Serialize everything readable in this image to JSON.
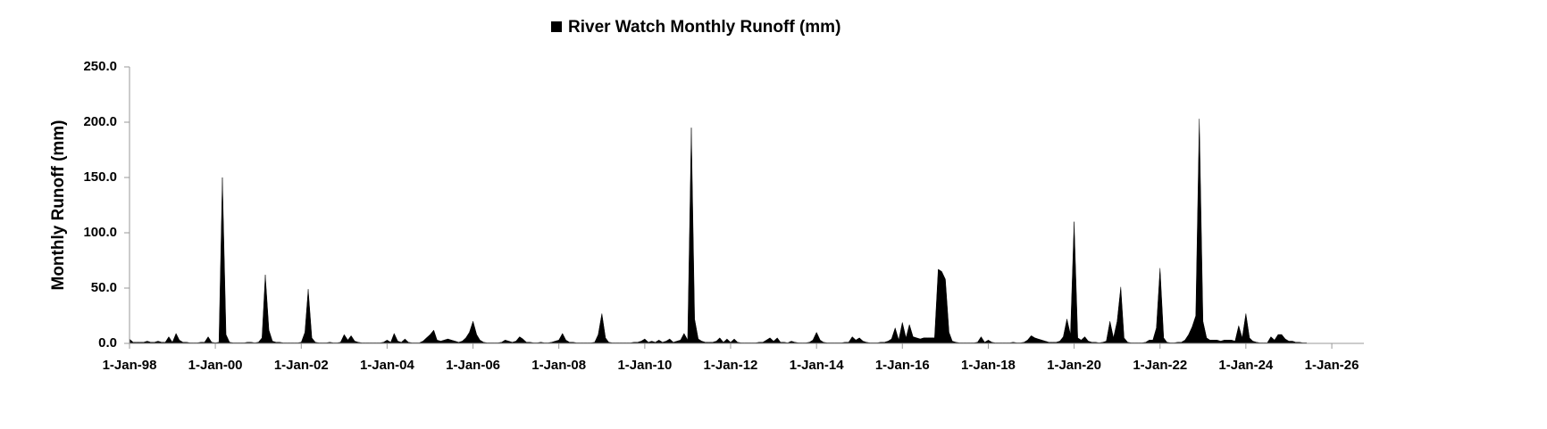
{
  "chart_data": {
    "type": "area",
    "y_label": "Monthly Runoff (mm)",
    "legend": "top",
    "x": [
      "1998-01-01",
      "1998-02-01",
      "1998-03-01",
      "1998-04-01",
      "1998-05-01",
      "1998-06-01",
      "1998-07-01",
      "1998-08-01",
      "1998-09-01",
      "1998-10-01",
      "1998-11-01",
      "1998-12-01",
      "1999-01-01",
      "1999-02-01",
      "1999-03-01",
      "1999-04-01",
      "1999-05-01",
      "1999-06-01",
      "1999-07-01",
      "1999-08-01",
      "1999-09-01",
      "1999-10-01",
      "1999-11-01",
      "1999-12-01",
      "2000-01-01",
      "2000-02-01",
      "2000-03-01",
      "2000-04-01",
      "2000-05-01",
      "2000-06-01",
      "2000-07-01",
      "2000-08-01",
      "2000-09-01",
      "2000-10-01",
      "2000-11-01",
      "2000-12-01",
      "2001-01-01",
      "2001-02-01",
      "2001-03-01",
      "2001-04-01",
      "2001-05-01",
      "2001-06-01",
      "2001-07-01",
      "2001-08-01",
      "2001-09-01",
      "2001-10-01",
      "2001-11-01",
      "2001-12-01",
      "2002-01-01",
      "2002-02-01",
      "2002-03-01",
      "2002-04-01",
      "2002-05-01",
      "2002-06-01",
      "2002-07-01",
      "2002-08-01",
      "2002-09-01",
      "2002-10-01",
      "2002-11-01",
      "2002-12-01",
      "2003-01-01",
      "2003-02-01",
      "2003-03-01",
      "2003-04-01",
      "2003-05-01",
      "2003-06-01",
      "2003-07-01",
      "2003-08-01",
      "2003-09-01",
      "2003-10-01",
      "2003-11-01",
      "2003-12-01",
      "2004-01-01",
      "2004-02-01",
      "2004-03-01",
      "2004-04-01",
      "2004-05-01",
      "2004-06-01",
      "2004-07-01",
      "2004-08-01",
      "2004-09-01",
      "2004-10-01",
      "2004-11-01",
      "2004-12-01",
      "2005-01-01",
      "2005-02-01",
      "2005-03-01",
      "2005-04-01",
      "2005-05-01",
      "2005-06-01",
      "2005-07-01",
      "2005-08-01",
      "2005-09-01",
      "2005-10-01",
      "2005-11-01",
      "2005-12-01",
      "2006-01-01",
      "2006-02-01",
      "2006-03-01",
      "2006-04-01",
      "2006-05-01",
      "2006-06-01",
      "2006-07-01",
      "2006-08-01",
      "2006-09-01",
      "2006-10-01",
      "2006-11-01",
      "2006-12-01",
      "2007-01-01",
      "2007-02-01",
      "2007-03-01",
      "2007-04-01",
      "2007-05-01",
      "2007-06-01",
      "2007-07-01",
      "2007-08-01",
      "2007-09-01",
      "2007-10-01",
      "2007-11-01",
      "2007-12-01",
      "2008-01-01",
      "2008-02-01",
      "2008-03-01",
      "2008-04-01",
      "2008-05-01",
      "2008-06-01",
      "2008-07-01",
      "2008-08-01",
      "2008-09-01",
      "2008-10-01",
      "2008-11-01",
      "2008-12-01",
      "2009-01-01",
      "2009-02-01",
      "2009-03-01",
      "2009-04-01",
      "2009-05-01",
      "2009-06-01",
      "2009-07-01",
      "2009-08-01",
      "2009-09-01",
      "2009-10-01",
      "2009-11-01",
      "2009-12-01",
      "2010-01-01",
      "2010-02-01",
      "2010-03-01",
      "2010-04-01",
      "2010-05-01",
      "2010-06-01",
      "2010-07-01",
      "2010-08-01",
      "2010-09-01",
      "2010-10-01",
      "2010-11-01",
      "2010-12-01",
      "2011-01-01",
      "2011-02-01",
      "2011-03-01",
      "2011-04-01",
      "2011-05-01",
      "2011-06-01",
      "2011-07-01",
      "2011-08-01",
      "2011-09-01",
      "2011-10-01",
      "2011-11-01",
      "2011-12-01",
      "2012-01-01",
      "2012-02-01",
      "2012-03-01",
      "2012-04-01",
      "2012-05-01",
      "2012-06-01",
      "2012-07-01",
      "2012-08-01",
      "2012-09-01",
      "2012-10-01",
      "2012-11-01",
      "2012-12-01",
      "2013-01-01",
      "2013-02-01",
      "2013-03-01",
      "2013-04-01",
      "2013-05-01",
      "2013-06-01",
      "2013-07-01",
      "2013-08-01",
      "2013-09-01",
      "2013-10-01",
      "2013-11-01",
      "2013-12-01",
      "2014-01-01",
      "2014-02-01",
      "2014-03-01",
      "2014-04-01",
      "2014-05-01",
      "2014-06-01",
      "2014-07-01",
      "2014-08-01",
      "2014-09-01",
      "2014-10-01",
      "2014-11-01",
      "2014-12-01",
      "2015-01-01",
      "2015-02-01",
      "2015-03-01",
      "2015-04-01",
      "2015-05-01",
      "2015-06-01",
      "2015-07-01",
      "2015-08-01",
      "2015-09-01",
      "2015-10-01",
      "2015-11-01",
      "2015-12-01",
      "2016-01-01",
      "2016-02-01",
      "2016-03-01",
      "2016-04-01",
      "2016-05-01",
      "2016-06-01",
      "2016-07-01",
      "2016-08-01",
      "2016-09-01",
      "2016-10-01",
      "2016-11-01",
      "2016-12-01",
      "2017-01-01",
      "2017-02-01",
      "2017-03-01",
      "2017-04-01",
      "2017-05-01",
      "2017-06-01",
      "2017-07-01",
      "2017-08-01",
      "2017-09-01",
      "2017-10-01",
      "2017-11-01",
      "2017-12-01",
      "2018-01-01",
      "2018-02-01",
      "2018-03-01",
      "2018-04-01",
      "2018-05-01",
      "2018-06-01",
      "2018-07-01",
      "2018-08-01",
      "2018-09-01",
      "2018-10-01",
      "2018-11-01",
      "2018-12-01",
      "2019-01-01",
      "2019-02-01",
      "2019-03-01",
      "2019-04-01",
      "2019-05-01",
      "2019-06-01",
      "2019-07-01",
      "2019-08-01",
      "2019-09-01",
      "2019-10-01",
      "2019-11-01",
      "2019-12-01",
      "2020-01-01",
      "2020-02-01",
      "2020-03-01",
      "2020-04-01",
      "2020-05-01",
      "2020-06-01",
      "2020-07-01",
      "2020-08-01",
      "2020-09-01",
      "2020-10-01",
      "2020-11-01",
      "2020-12-01",
      "2021-01-01",
      "2021-02-01",
      "2021-03-01",
      "2021-04-01",
      "2021-05-01",
      "2021-06-01",
      "2021-07-01",
      "2021-08-01",
      "2021-09-01",
      "2021-10-01",
      "2021-11-01",
      "2021-12-01",
      "2022-01-01",
      "2022-02-01",
      "2022-03-01",
      "2022-04-01",
      "2022-05-01",
      "2022-06-01",
      "2022-07-01",
      "2022-08-01",
      "2022-09-01",
      "2022-10-01",
      "2022-11-01",
      "2022-12-01",
      "2023-01-01",
      "2023-02-01",
      "2023-03-01",
      "2023-04-01",
      "2023-05-01",
      "2023-06-01",
      "2023-07-01",
      "2023-08-01",
      "2023-09-01",
      "2023-10-01",
      "2023-11-01",
      "2023-12-01",
      "2024-01-01",
      "2024-02-01",
      "2024-03-01",
      "2024-04-01",
      "2024-05-01",
      "2024-06-01",
      "2024-07-01",
      "2024-08-01",
      "2024-09-01",
      "2024-10-01",
      "2024-11-01",
      "2024-12-01",
      "2025-01-01",
      "2025-02-01",
      "2025-03-01",
      "2025-04-01",
      "2025-05-01",
      "2025-06-01"
    ],
    "series": [
      {
        "name": "River Watch Monthly Runoff (mm)",
        "color": "#000000",
        "values": [
          4,
          1,
          1,
          1,
          1,
          2,
          1,
          1,
          2,
          1,
          1,
          6,
          1,
          9,
          3,
          1,
          1,
          0.5,
          0.5,
          0.5,
          1,
          1,
          6,
          1,
          0.5,
          1,
          150,
          8,
          1,
          0.5,
          0.5,
          0.5,
          0.5,
          1,
          1,
          0.5,
          1,
          5,
          62,
          12,
          2,
          1,
          1,
          0.5,
          0.5,
          0.5,
          0.5,
          0.5,
          1,
          10,
          49,
          5,
          1,
          0.5,
          0.5,
          0.5,
          1,
          0.5,
          0.5,
          1,
          8,
          3,
          7,
          2,
          1,
          0.5,
          0.5,
          0.5,
          0.5,
          0.5,
          0.5,
          1,
          3,
          1,
          9,
          2,
          1,
          4,
          1,
          0.5,
          0.5,
          0.5,
          2,
          5,
          8,
          12,
          3,
          2,
          3,
          4,
          3,
          2,
          1,
          2,
          5,
          10,
          20,
          8,
          3,
          1,
          0.5,
          0.5,
          0.5,
          0.5,
          1,
          3,
          2,
          1,
          2,
          6,
          4,
          1,
          1,
          0.5,
          0.5,
          1,
          0.5,
          0.5,
          1,
          2,
          3,
          9,
          3,
          1,
          1,
          0.5,
          0.5,
          0.5,
          0.5,
          0.5,
          1,
          8,
          27,
          5,
          1,
          0.5,
          0.5,
          0.5,
          0.5,
          0.5,
          0.5,
          1,
          1,
          2,
          4,
          1,
          2,
          1,
          3,
          1,
          2,
          4,
          1,
          2,
          3,
          9,
          3,
          195,
          22,
          4,
          2,
          1,
          1,
          1,
          2,
          5,
          1,
          4,
          1,
          4,
          1,
          0.5,
          0.5,
          0.5,
          0.5,
          0.5,
          1,
          1,
          3,
          5,
          2,
          5,
          1,
          1,
          0.5,
          2,
          1,
          0.5,
          0.5,
          0.5,
          1,
          3,
          10,
          3,
          1,
          0.5,
          0.5,
          0.5,
          0.5,
          0.5,
          1,
          1,
          6,
          3,
          5,
          2,
          1,
          0.5,
          0.5,
          0.5,
          1,
          1,
          2,
          4,
          14,
          3,
          19,
          5,
          17,
          6,
          5,
          4,
          5,
          5,
          5,
          5,
          67,
          65,
          58,
          10,
          2,
          1,
          0.5,
          0.5,
          0.5,
          0.5,
          0.5,
          1,
          6,
          1,
          3,
          1,
          0.5,
          0.5,
          0.5,
          0.5,
          0.5,
          1,
          0.5,
          0.5,
          1,
          3,
          7,
          5,
          4,
          3,
          2,
          1,
          1,
          1,
          2,
          6,
          22,
          8,
          110,
          5,
          3,
          6,
          2,
          1,
          1,
          0.5,
          1,
          2,
          20,
          5,
          20,
          51,
          5,
          1,
          0.5,
          0.5,
          0.5,
          0.5,
          1,
          3,
          3,
          14,
          68,
          5,
          1,
          0.5,
          0.5,
          1,
          1,
          3,
          8,
          15,
          25,
          203,
          20,
          5,
          3,
          3,
          3,
          2,
          3,
          3,
          3,
          2,
          16,
          5,
          27,
          5,
          2,
          1,
          0.5,
          0.5,
          0.5,
          6,
          3,
          8,
          8,
          4,
          2,
          2,
          1,
          1,
          0.5,
          0.5
        ]
      }
    ],
    "xlim": [
      "1998-01-01",
      "2026-10-01"
    ],
    "xticks": [
      {
        "value": "1998-01-01",
        "label": "1-Jan-98"
      },
      {
        "value": "2000-01-01",
        "label": "1-Jan-00"
      },
      {
        "value": "2002-01-01",
        "label": "1-Jan-02"
      },
      {
        "value": "2004-01-01",
        "label": "1-Jan-04"
      },
      {
        "value": "2006-01-01",
        "label": "1-Jan-06"
      },
      {
        "value": "2008-01-01",
        "label": "1-Jan-08"
      },
      {
        "value": "2010-01-01",
        "label": "1-Jan-10"
      },
      {
        "value": "2012-01-01",
        "label": "1-Jan-12"
      },
      {
        "value": "2014-01-01",
        "label": "1-Jan-14"
      },
      {
        "value": "2016-01-01",
        "label": "1-Jan-16"
      },
      {
        "value": "2018-01-01",
        "label": "1-Jan-18"
      },
      {
        "value": "2020-01-01",
        "label": "1-Jan-20"
      },
      {
        "value": "2022-01-01",
        "label": "1-Jan-22"
      },
      {
        "value": "2024-01-01",
        "label": "1-Jan-24"
      },
      {
        "value": "2026-01-01",
        "label": "1-Jan-26"
      }
    ],
    "ylim": [
      0,
      250
    ],
    "yticks": [
      {
        "value": 0,
        "label": "0.0"
      },
      {
        "value": 50,
        "label": "50.0"
      },
      {
        "value": 100,
        "label": "100.0"
      },
      {
        "value": 150,
        "label": "150.0"
      },
      {
        "value": 200,
        "label": "200.0"
      },
      {
        "value": 250,
        "label": "250.0"
      }
    ],
    "grid": false
  }
}
